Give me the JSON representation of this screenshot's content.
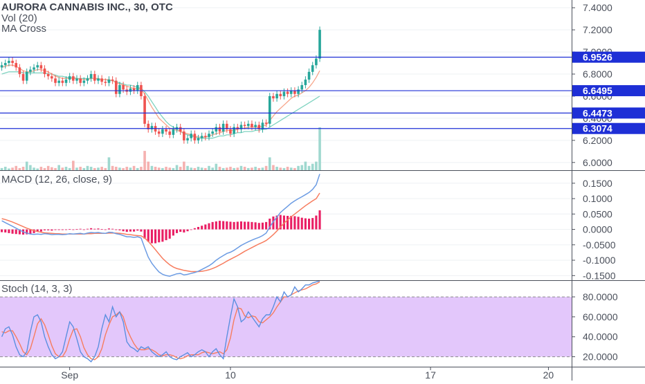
{
  "chart_data": {
    "type": "candlestick",
    "title": "AURORA CANNABIS INC., 30, OTC",
    "colors": {
      "up": "#26a69a",
      "down": "#ef5350",
      "ma_fast": "#f7a58a",
      "ma_slow": "#7fd3c0",
      "horizontal_lines": "#1e2fd6",
      "price_label_bg": "#1e2fd6",
      "macd_line": "#6b9be3",
      "signal_line": "#f77c5e",
      "macd_hist": "#e91e63",
      "stoch_k": "#5b8fe0",
      "stoch_d": "#f77c5e",
      "stoch_band": "#e3c7fb"
    },
    "price_panel": {
      "indicators": [
        "Vol (20)",
        "MA Cross"
      ],
      "y_ticks": [
        "7.4000",
        "7.2000",
        "7.0000",
        "6.8000",
        "6.6000",
        "6.4000",
        "6.2000",
        "6.0000"
      ],
      "y_range": [
        5.93,
        7.47
      ],
      "horizontal_levels": [
        {
          "value": 6.9526,
          "label": "6.9526"
        },
        {
          "value": 6.6495,
          "label": "6.6495"
        },
        {
          "value": 6.4473,
          "label": "6.4473"
        },
        {
          "value": 6.3074,
          "label": "6.3074"
        }
      ],
      "close_series": [
        6.88,
        6.9,
        6.92,
        6.9,
        6.86,
        6.8,
        6.74,
        6.82,
        6.84,
        6.86,
        6.88,
        6.85,
        6.8,
        6.78,
        6.76,
        6.72,
        6.74,
        6.72,
        6.75,
        6.78,
        6.74,
        6.76,
        6.72,
        6.74,
        6.76,
        6.8,
        6.74,
        6.76,
        6.73,
        6.72,
        6.75,
        6.74,
        6.62,
        6.7,
        6.66,
        6.64,
        6.67,
        6.65,
        6.7,
        6.6,
        6.35,
        6.3,
        6.33,
        6.28,
        6.26,
        6.3,
        6.28,
        6.25,
        6.3,
        6.32,
        6.28,
        6.2,
        6.22,
        6.26,
        6.2,
        6.22,
        6.24,
        6.23,
        6.26,
        6.28,
        6.32,
        6.28,
        6.35,
        6.3,
        6.26,
        6.32,
        6.3,
        6.34,
        6.33,
        6.35,
        6.32,
        6.34,
        6.3,
        6.36,
        6.35,
        6.6,
        6.58,
        6.62,
        6.6,
        6.64,
        6.62,
        6.65,
        6.62,
        6.66,
        6.7,
        6.75,
        6.82,
        6.88,
        6.94,
        7.2
      ],
      "ma_fast": [
        6.86,
        6.87,
        6.88,
        6.88,
        6.87,
        6.85,
        6.83,
        6.82,
        6.82,
        6.83,
        6.84,
        6.84,
        6.83,
        6.82,
        6.8,
        6.78,
        6.77,
        6.76,
        6.76,
        6.76,
        6.76,
        6.76,
        6.75,
        6.75,
        6.75,
        6.76,
        6.76,
        6.76,
        6.75,
        6.75,
        6.75,
        6.74,
        6.72,
        6.71,
        6.7,
        6.69,
        6.68,
        6.67,
        6.67,
        6.66,
        6.62,
        6.56,
        6.5,
        6.45,
        6.4,
        6.37,
        6.34,
        6.31,
        6.3,
        6.29,
        6.28,
        6.27,
        6.26,
        6.25,
        6.24,
        6.23,
        6.23,
        6.23,
        6.24,
        6.25,
        6.26,
        6.27,
        6.28,
        6.29,
        6.29,
        6.29,
        6.3,
        6.31,
        6.31,
        6.32,
        6.32,
        6.32,
        6.32,
        6.33,
        6.34,
        6.38,
        6.42,
        6.46,
        6.49,
        6.52,
        6.55,
        6.58,
        6.6,
        6.61,
        6.63,
        6.65,
        6.68,
        6.72,
        6.77,
        6.83
      ],
      "ma_slow": [
        6.8,
        6.81,
        6.82,
        6.82,
        6.82,
        6.82,
        6.81,
        6.81,
        6.81,
        6.81,
        6.81,
        6.81,
        6.81,
        6.8,
        6.8,
        6.79,
        6.78,
        6.78,
        6.77,
        6.77,
        6.77,
        6.76,
        6.76,
        6.76,
        6.76,
        6.76,
        6.76,
        6.75,
        6.75,
        6.75,
        6.74,
        6.74,
        6.73,
        6.72,
        6.71,
        6.7,
        6.7,
        6.69,
        6.68,
        6.67,
        6.64,
        6.6,
        6.55,
        6.5,
        6.45,
        6.41,
        6.37,
        6.34,
        6.32,
        6.3,
        6.28,
        6.26,
        6.25,
        6.24,
        6.23,
        6.22,
        6.22,
        6.22,
        6.22,
        6.22,
        6.23,
        6.24,
        6.24,
        6.25,
        6.25,
        6.26,
        6.27,
        6.27,
        6.28,
        6.28,
        6.28,
        6.29,
        6.29,
        6.3,
        6.3,
        6.32,
        6.34,
        6.36,
        6.38,
        6.4,
        6.42,
        6.44,
        6.46,
        6.48,
        6.5,
        6.52,
        6.54,
        6.56,
        6.58,
        6.6
      ],
      "volume_series": [
        0.05,
        0.08,
        0.04,
        0.06,
        0.1,
        0.05,
        0.08,
        0.2,
        0.12,
        0.06,
        0.04,
        0.08,
        0.05,
        0.1,
        0.07,
        0.05,
        0.12,
        0.06,
        0.08,
        0.05,
        0.22,
        0.06,
        0.08,
        0.05,
        0.1,
        0.08,
        0.05,
        0.06,
        0.08,
        0.05,
        0.3,
        0.1,
        0.08,
        0.06,
        0.05,
        0.08,
        0.06,
        0.1,
        0.05,
        0.08,
        0.45,
        0.2,
        0.1,
        0.08,
        0.06,
        0.05,
        0.08,
        0.06,
        0.05,
        0.12,
        0.08,
        0.2,
        0.1,
        0.06,
        0.05,
        0.08,
        0.06,
        0.05,
        0.1,
        0.06,
        0.15,
        0.08,
        0.05,
        0.06,
        0.08,
        0.05,
        0.06,
        0.1,
        0.08,
        0.05,
        0.06,
        0.08,
        0.05,
        0.06,
        0.1,
        0.3,
        0.12,
        0.08,
        0.06,
        0.05,
        0.08,
        0.06,
        0.05,
        0.1,
        0.12,
        0.2,
        0.1,
        0.15,
        0.2,
        1.0
      ]
    },
    "macd_panel": {
      "label": "MACD (12, 26, close, 9)",
      "y_ticks": [
        "0.1500",
        "0.1000",
        "0.0500",
        "0.0000",
        "-0.0500",
        "-0.1000",
        "-0.1500"
      ],
      "y_range": [
        -0.165,
        0.19
      ],
      "macd_series": [
        0.028,
        0.022,
        0.016,
        0.01,
        0.004,
        -0.002,
        -0.008,
        -0.012,
        -0.015,
        -0.016,
        -0.015,
        -0.016,
        -0.014,
        -0.015,
        -0.017,
        -0.016,
        -0.016,
        -0.017,
        -0.016,
        -0.014,
        -0.015,
        -0.014,
        -0.013,
        -0.015,
        -0.012,
        -0.01,
        -0.011,
        -0.01,
        -0.012,
        -0.013,
        -0.009,
        -0.01,
        -0.014,
        -0.016,
        -0.02,
        -0.024,
        -0.024,
        -0.026,
        -0.024,
        -0.028,
        -0.06,
        -0.09,
        -0.11,
        -0.125,
        -0.138,
        -0.146,
        -0.15,
        -0.152,
        -0.148,
        -0.144,
        -0.143,
        -0.148,
        -0.146,
        -0.143,
        -0.14,
        -0.136,
        -0.13,
        -0.124,
        -0.118,
        -0.11,
        -0.1,
        -0.092,
        -0.085,
        -0.078,
        -0.074,
        -0.068,
        -0.06,
        -0.052,
        -0.046,
        -0.04,
        -0.035,
        -0.03,
        -0.026,
        -0.02,
        -0.012,
        0.008,
        0.025,
        0.04,
        0.055,
        0.065,
        0.075,
        0.085,
        0.093,
        0.1,
        0.106,
        0.113,
        0.12,
        0.13,
        0.145,
        0.18
      ],
      "signal_series": [
        0.035,
        0.032,
        0.028,
        0.024,
        0.019,
        0.014,
        0.009,
        0.004,
        0.0,
        -0.004,
        -0.007,
        -0.009,
        -0.011,
        -0.012,
        -0.013,
        -0.014,
        -0.014,
        -0.015,
        -0.015,
        -0.015,
        -0.015,
        -0.015,
        -0.015,
        -0.015,
        -0.014,
        -0.014,
        -0.013,
        -0.013,
        -0.013,
        -0.013,
        -0.012,
        -0.012,
        -0.012,
        -0.013,
        -0.014,
        -0.016,
        -0.017,
        -0.019,
        -0.02,
        -0.021,
        -0.028,
        -0.039,
        -0.052,
        -0.066,
        -0.08,
        -0.094,
        -0.105,
        -0.115,
        -0.122,
        -0.127,
        -0.13,
        -0.133,
        -0.135,
        -0.137,
        -0.137,
        -0.137,
        -0.136,
        -0.134,
        -0.131,
        -0.127,
        -0.122,
        -0.116,
        -0.11,
        -0.103,
        -0.097,
        -0.091,
        -0.085,
        -0.078,
        -0.071,
        -0.065,
        -0.059,
        -0.053,
        -0.047,
        -0.042,
        -0.036,
        -0.027,
        -0.017,
        -0.005,
        0.008,
        0.02,
        0.031,
        0.041,
        0.05,
        0.059,
        0.068,
        0.077,
        0.085,
        0.093,
        0.1,
        0.118
      ],
      "histogram_series": [
        -0.009,
        -0.01,
        -0.012,
        -0.014,
        -0.015,
        -0.016,
        -0.017,
        -0.016,
        -0.015,
        -0.012,
        -0.008,
        -0.007,
        -0.003,
        -0.003,
        -0.004,
        -0.002,
        -0.002,
        -0.002,
        -0.001,
        0.001,
        0.0,
        0.001,
        0.002,
        0.0,
        0.002,
        0.004,
        0.002,
        0.003,
        0.001,
        0.0,
        0.003,
        0.002,
        -0.002,
        -0.003,
        -0.006,
        -0.008,
        -0.007,
        -0.007,
        -0.004,
        -0.007,
        -0.03,
        -0.04,
        -0.045,
        -0.045,
        -0.042,
        -0.04,
        -0.035,
        -0.03,
        -0.02,
        -0.012,
        -0.008,
        -0.01,
        -0.006,
        0.0,
        0.004,
        0.008,
        0.012,
        0.016,
        0.02,
        0.024,
        0.026,
        0.028,
        0.027,
        0.026,
        0.025,
        0.024,
        0.025,
        0.026,
        0.025,
        0.025,
        0.024,
        0.023,
        0.021,
        0.022,
        0.024,
        0.035,
        0.042,
        0.045,
        0.047,
        0.045,
        0.044,
        0.044,
        0.043,
        0.041,
        0.038,
        0.036,
        0.035,
        0.037,
        0.045,
        0.062
      ]
    },
    "stoch_panel": {
      "label": "Stoch (14, 3, 3)",
      "y_ticks": [
        "80.0000",
        "60.0000",
        "40.0000",
        "20.0000"
      ],
      "y_range": [
        10,
        96
      ],
      "band": [
        20,
        80
      ],
      "k_series": [
        40,
        48,
        50,
        42,
        30,
        22,
        20,
        25,
        45,
        60,
        62,
        55,
        40,
        30,
        22,
        18,
        20,
        25,
        40,
        55,
        50,
        38,
        25,
        20,
        18,
        15,
        20,
        30,
        48,
        62,
        55,
        70,
        60,
        65,
        55,
        35,
        30,
        28,
        25,
        30,
        28,
        30,
        25,
        22,
        20,
        22,
        25,
        20,
        18,
        17,
        20,
        22,
        24,
        20,
        22,
        25,
        27,
        25,
        20,
        25,
        28,
        22,
        18,
        40,
        60,
        78,
        70,
        55,
        58,
        65,
        60,
        55,
        50,
        58,
        62,
        62,
        70,
        80,
        75,
        85,
        80,
        82,
        90,
        85,
        88,
        92,
        92,
        94,
        95,
        96
      ],
      "d_series": [
        45,
        44,
        46,
        46,
        40,
        33,
        25,
        22,
        28,
        40,
        53,
        58,
        52,
        42,
        31,
        23,
        20,
        20,
        26,
        38,
        47,
        48,
        40,
        29,
        22,
        18,
        17,
        20,
        28,
        42,
        52,
        60,
        62,
        65,
        60,
        48,
        40,
        33,
        28,
        27,
        27,
        28,
        27,
        25,
        22,
        21,
        22,
        22,
        21,
        19,
        18,
        19,
        21,
        22,
        22,
        22,
        24,
        25,
        24,
        23,
        24,
        25,
        23,
        27,
        39,
        57,
        69,
        68,
        61,
        59,
        61,
        60,
        55,
        54,
        57,
        60,
        64,
        70,
        75,
        80,
        80,
        82,
        84,
        86,
        87,
        88,
        90,
        92,
        93,
        95
      ]
    },
    "x_axis": {
      "tick_labels": [
        {
          "label": "Sep",
          "index": 19
        },
        {
          "label": "10",
          "index": 64
        },
        {
          "label": "17",
          "index": 120
        },
        {
          "label": "20",
          "index": 153
        }
      ],
      "total_slots": 160
    }
  }
}
